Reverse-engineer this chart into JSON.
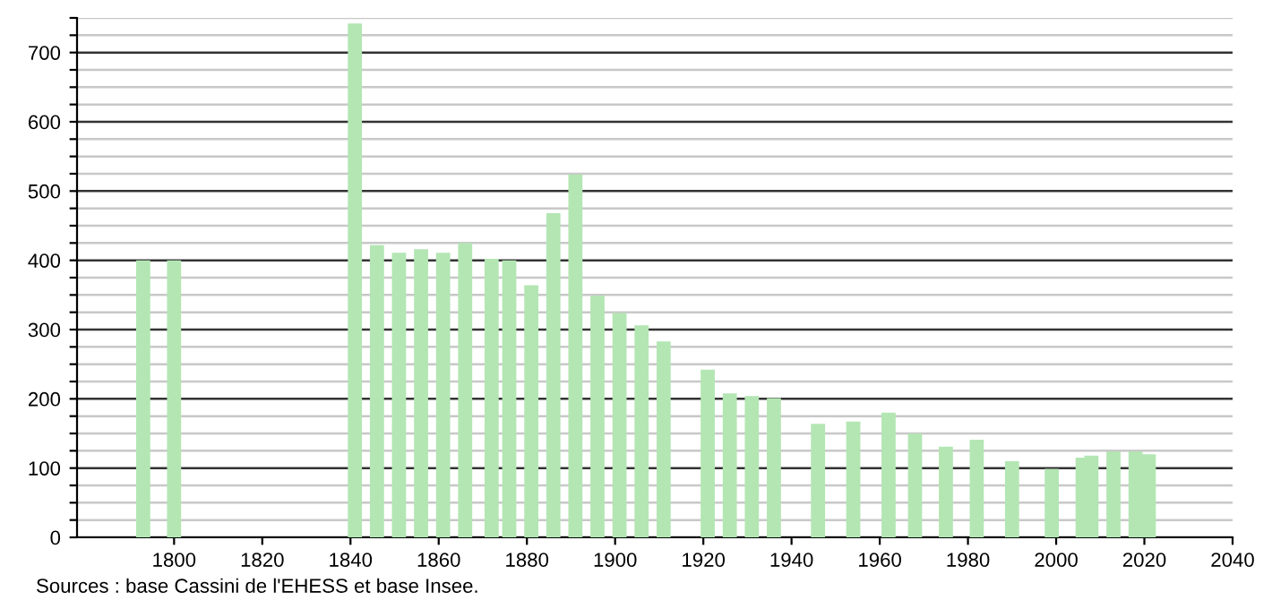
{
  "chart_data": {
    "type": "bar",
    "x": [
      1793,
      1800,
      1841,
      1846,
      1851,
      1856,
      1861,
      1866,
      1872,
      1876,
      1881,
      1886,
      1891,
      1896,
      1901,
      1906,
      1911,
      1921,
      1926,
      1931,
      1936,
      1946,
      1954,
      1962,
      1968,
      1975,
      1982,
      1990,
      1999,
      2006,
      2008,
      2013,
      2018,
      2021
    ],
    "values": [
      400,
      400,
      742,
      422,
      411,
      416,
      411,
      425,
      402,
      400,
      364,
      468,
      524,
      349,
      324,
      306,
      283,
      242,
      208,
      204,
      201,
      164,
      167,
      180,
      150,
      131,
      141,
      110,
      99,
      115,
      118,
      124,
      124,
      120
    ],
    "color": "#b3e6b3",
    "xlim": [
      1778,
      2040
    ],
    "xticks": [
      1800,
      1820,
      1840,
      1860,
      1880,
      1900,
      1920,
      1940,
      1960,
      1980,
      2000,
      2020,
      2040
    ],
    "ylim": [
      0,
      750
    ],
    "yticks": [
      0,
      {
        "value": 25,
        "label": null
      },
      {
        "value": 50,
        "label": null
      },
      {
        "value": 75,
        "label": null
      },
      100,
      {
        "value": 125,
        "label": null
      },
      {
        "value": 150,
        "label": null
      },
      {
        "value": 175,
        "label": null
      },
      200,
      {
        "value": 225,
        "label": null
      },
      {
        "value": 250,
        "label": null
      },
      {
        "value": 275,
        "label": null
      },
      300,
      {
        "value": 325,
        "label": null
      },
      {
        "value": 350,
        "label": null
      },
      {
        "value": 375,
        "label": null
      },
      400,
      {
        "value": 425,
        "label": null
      },
      {
        "value": 450,
        "label": null
      },
      {
        "value": 475,
        "label": null
      },
      500,
      {
        "value": 525,
        "label": null
      },
      {
        "value": 550,
        "label": null
      },
      {
        "value": 575,
        "label": null
      },
      600,
      {
        "value": 625,
        "label": null
      },
      {
        "value": 650,
        "label": null
      },
      {
        "value": 675,
        "label": null
      },
      700,
      {
        "value": 725,
        "label": null
      },
      {
        "value": 750,
        "label": null
      }
    ],
    "grid": "y",
    "annotations": [
      "Sources : base Cassini de l'EHESS et base Insee."
    ]
  }
}
